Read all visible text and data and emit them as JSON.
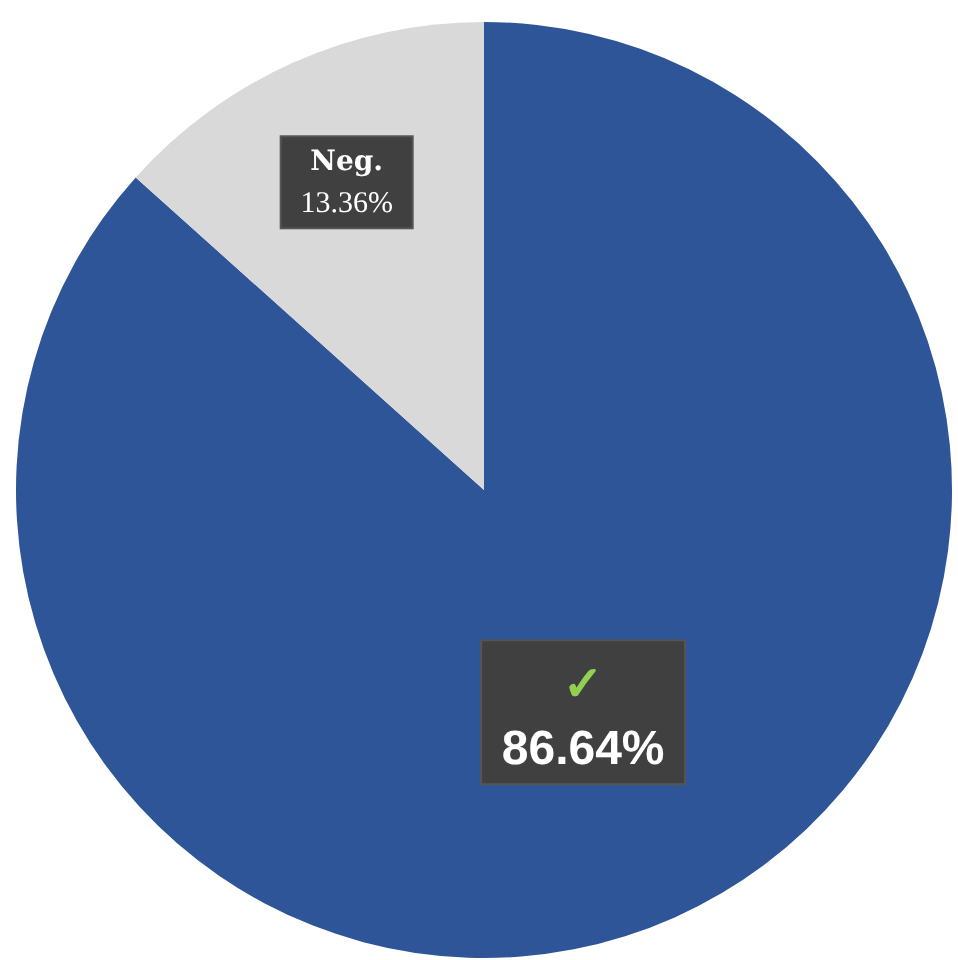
{
  "chart_data": {
    "type": "pie",
    "categories": [
      "✓",
      "Neg."
    ],
    "values": [
      86.64,
      13.36
    ],
    "colors": [
      "#2e5597",
      "#d9d9d9"
    ],
    "value_labels": [
      "86.64%",
      "13.36%"
    ],
    "legend": false
  }
}
